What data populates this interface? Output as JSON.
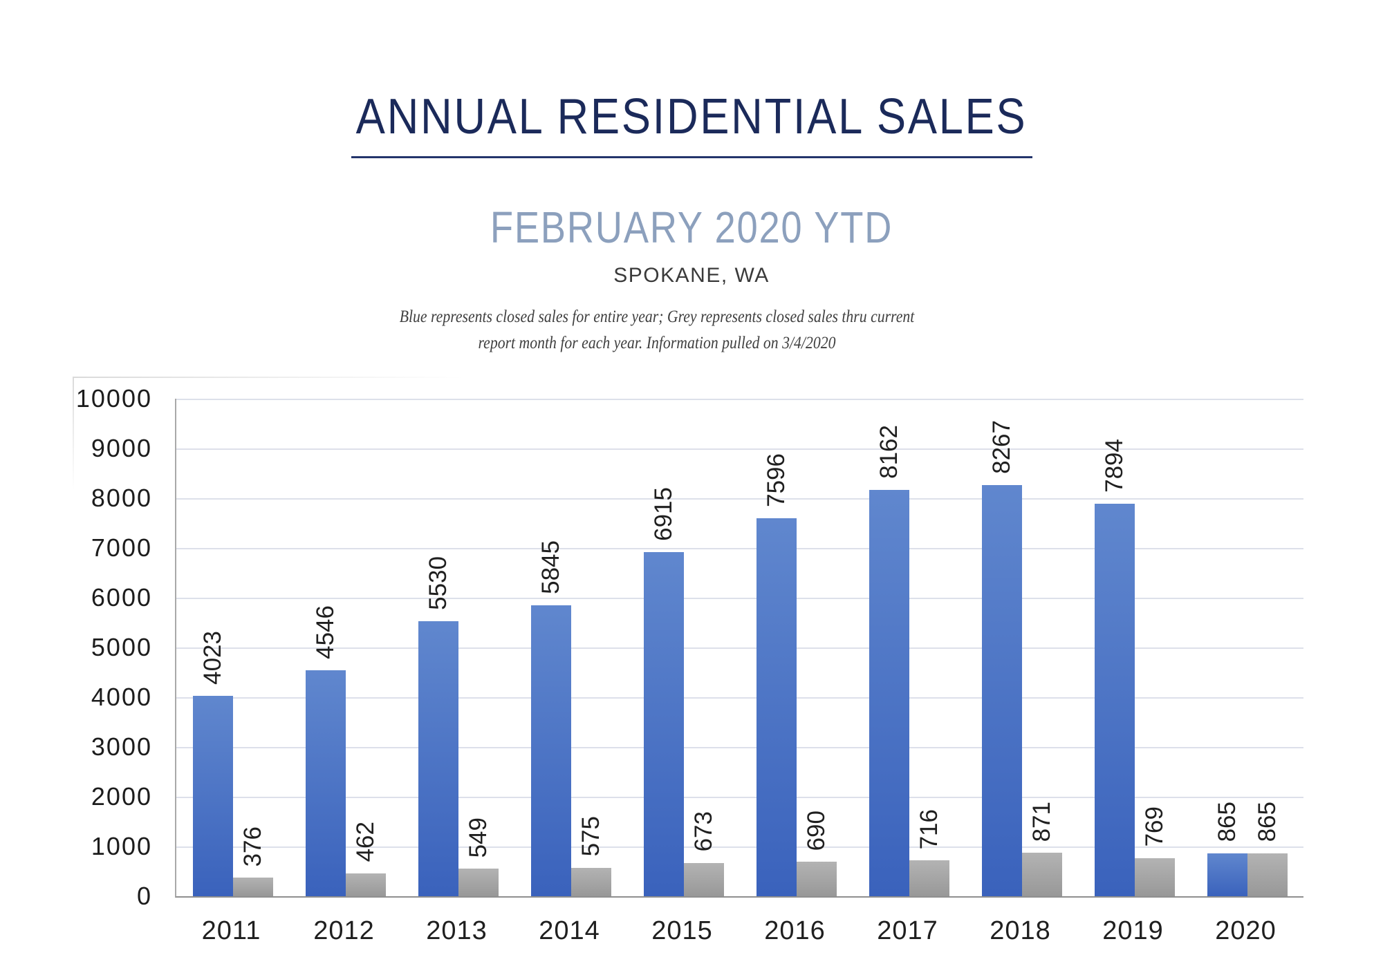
{
  "page": {
    "title": "ANNUAL RESIDENTIAL SALES",
    "subtitle": "FEBRUARY 2020 YTD",
    "location": "SPOKANE, WA",
    "note_line1": "Blue represents closed sales for entire year; Grey represents closed sales thru current",
    "note_line2": "report month for each year.  Information pulled on 3/4/2020"
  },
  "colors": {
    "title_navy": "#1b2a5a",
    "subtitle_blue_grey": "#8ca0bd",
    "bar_blue": "#4472c4",
    "bar_grey": "#a6a6a6",
    "gridline": "#dde0ea",
    "axis_line": "#a9a9a9"
  },
  "chart_data": {
    "type": "bar",
    "title": "ANNUAL RESIDENTIAL SALES",
    "subtitle": "FEBRUARY 2020 YTD",
    "location": "SPOKANE, WA",
    "categories": [
      "2011",
      "2012",
      "2013",
      "2014",
      "2015",
      "2016",
      "2017",
      "2018",
      "2019",
      "2020"
    ],
    "series": [
      {
        "name": "Blue - closed sales for entire year",
        "color": "#4472c4",
        "values": [
          4023,
          4546,
          5530,
          5845,
          6915,
          7596,
          8162,
          8267,
          7894,
          865
        ]
      },
      {
        "name": "Grey - closed sales thru current report month",
        "color": "#a6a6a6",
        "values": [
          376,
          462,
          549,
          575,
          673,
          690,
          716,
          871,
          769,
          865
        ]
      }
    ],
    "xlabel": "",
    "ylabel": "",
    "ylim": [
      0,
      10000
    ],
    "ytick_step": 1000,
    "yticks": [
      "10000",
      "9000",
      "8000",
      "7000",
      "6000",
      "5000",
      "4000",
      "3000",
      "2000",
      "1000",
      "0"
    ],
    "grid": true,
    "legend_position": "none",
    "bar_label_rotation": -90
  }
}
